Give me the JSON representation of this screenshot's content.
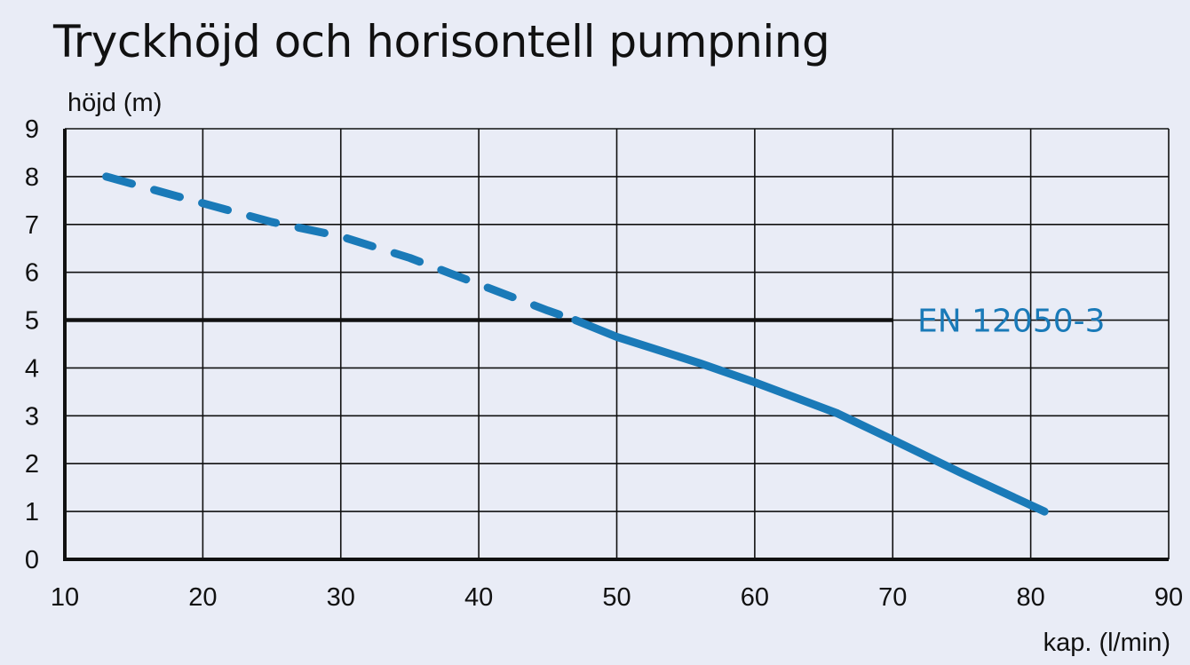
{
  "chart_data": {
    "type": "line",
    "title": "Tryckhöjd och horisontell pumpning",
    "ylabel": "höjd (m)",
    "xlabel": "kap. (l/min)",
    "xlim": [
      10,
      90
    ],
    "ylim": [
      0,
      9
    ],
    "x_ticks": [
      "10",
      "20",
      "30",
      "40",
      "50",
      "60",
      "70",
      "80",
      "90"
    ],
    "y_ticks": [
      "0",
      "1",
      "2",
      "3",
      "4",
      "5",
      "6",
      "7",
      "8",
      "9"
    ],
    "grid": true,
    "color": "#1a7ab8",
    "series": [
      {
        "style": "dashed",
        "x": [
          13,
          18,
          25,
          30,
          35,
          40,
          45,
          47
        ],
        "y": [
          8.0,
          7.6,
          7.05,
          6.75,
          6.3,
          5.75,
          5.2,
          5.0
        ]
      },
      {
        "style": "solid",
        "x": [
          47,
          50,
          56,
          60,
          66,
          70,
          75,
          81
        ],
        "y": [
          5.0,
          4.65,
          4.1,
          3.7,
          3.05,
          2.5,
          1.8,
          1.0
        ]
      }
    ],
    "reference_line": {
      "label": "EN 12050-3",
      "y": 5,
      "x_start": 10,
      "x_end": 70
    }
  }
}
